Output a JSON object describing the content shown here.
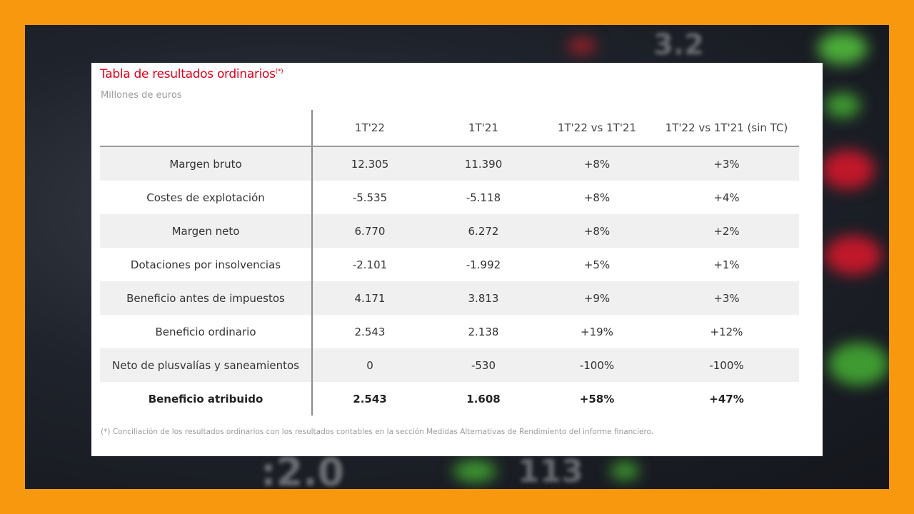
{
  "card": {
    "title": "Tabla de resultados ordinarios",
    "title_mark": "(*)",
    "subtitle": "Millones de euros",
    "footnote": "(*) Conciliación de los resultados ordinarios con los resultados contables en la sección Medidas Alternativas de Rendimiento del informe financiero."
  },
  "table": {
    "headers": [
      "",
      "1T'22",
      "1T'21",
      "1T'22 vs 1T'21",
      "1T'22 vs 1T'21 (sin TC)"
    ],
    "rows": [
      [
        "Margen bruto",
        "12.305",
        "11.390",
        "+8%",
        "+3%"
      ],
      [
        "Costes de explotación",
        "-5.535",
        "-5.118",
        "+8%",
        "+4%"
      ],
      [
        "Margen neto",
        "6.770",
        "6.272",
        "+8%",
        "+2%"
      ],
      [
        "Dotaciones por insolvencias",
        "-2.101",
        "-1.992",
        "+5%",
        "+1%"
      ],
      [
        "Beneficio antes de impuestos",
        "4.171",
        "3.813",
        "+9%",
        "+3%"
      ],
      [
        "Beneficio ordinario",
        "2.543",
        "2.138",
        "+19%",
        "+12%"
      ],
      [
        "Neto de plusvalías y saneamientos",
        "0",
        "-530",
        "-100%",
        "-100%"
      ],
      [
        "Beneficio atribuido",
        "2.543",
        "1.608",
        "+58%",
        "+47%"
      ]
    ]
  },
  "colors": {
    "border": "#f8980f",
    "title": "#e0001a"
  }
}
